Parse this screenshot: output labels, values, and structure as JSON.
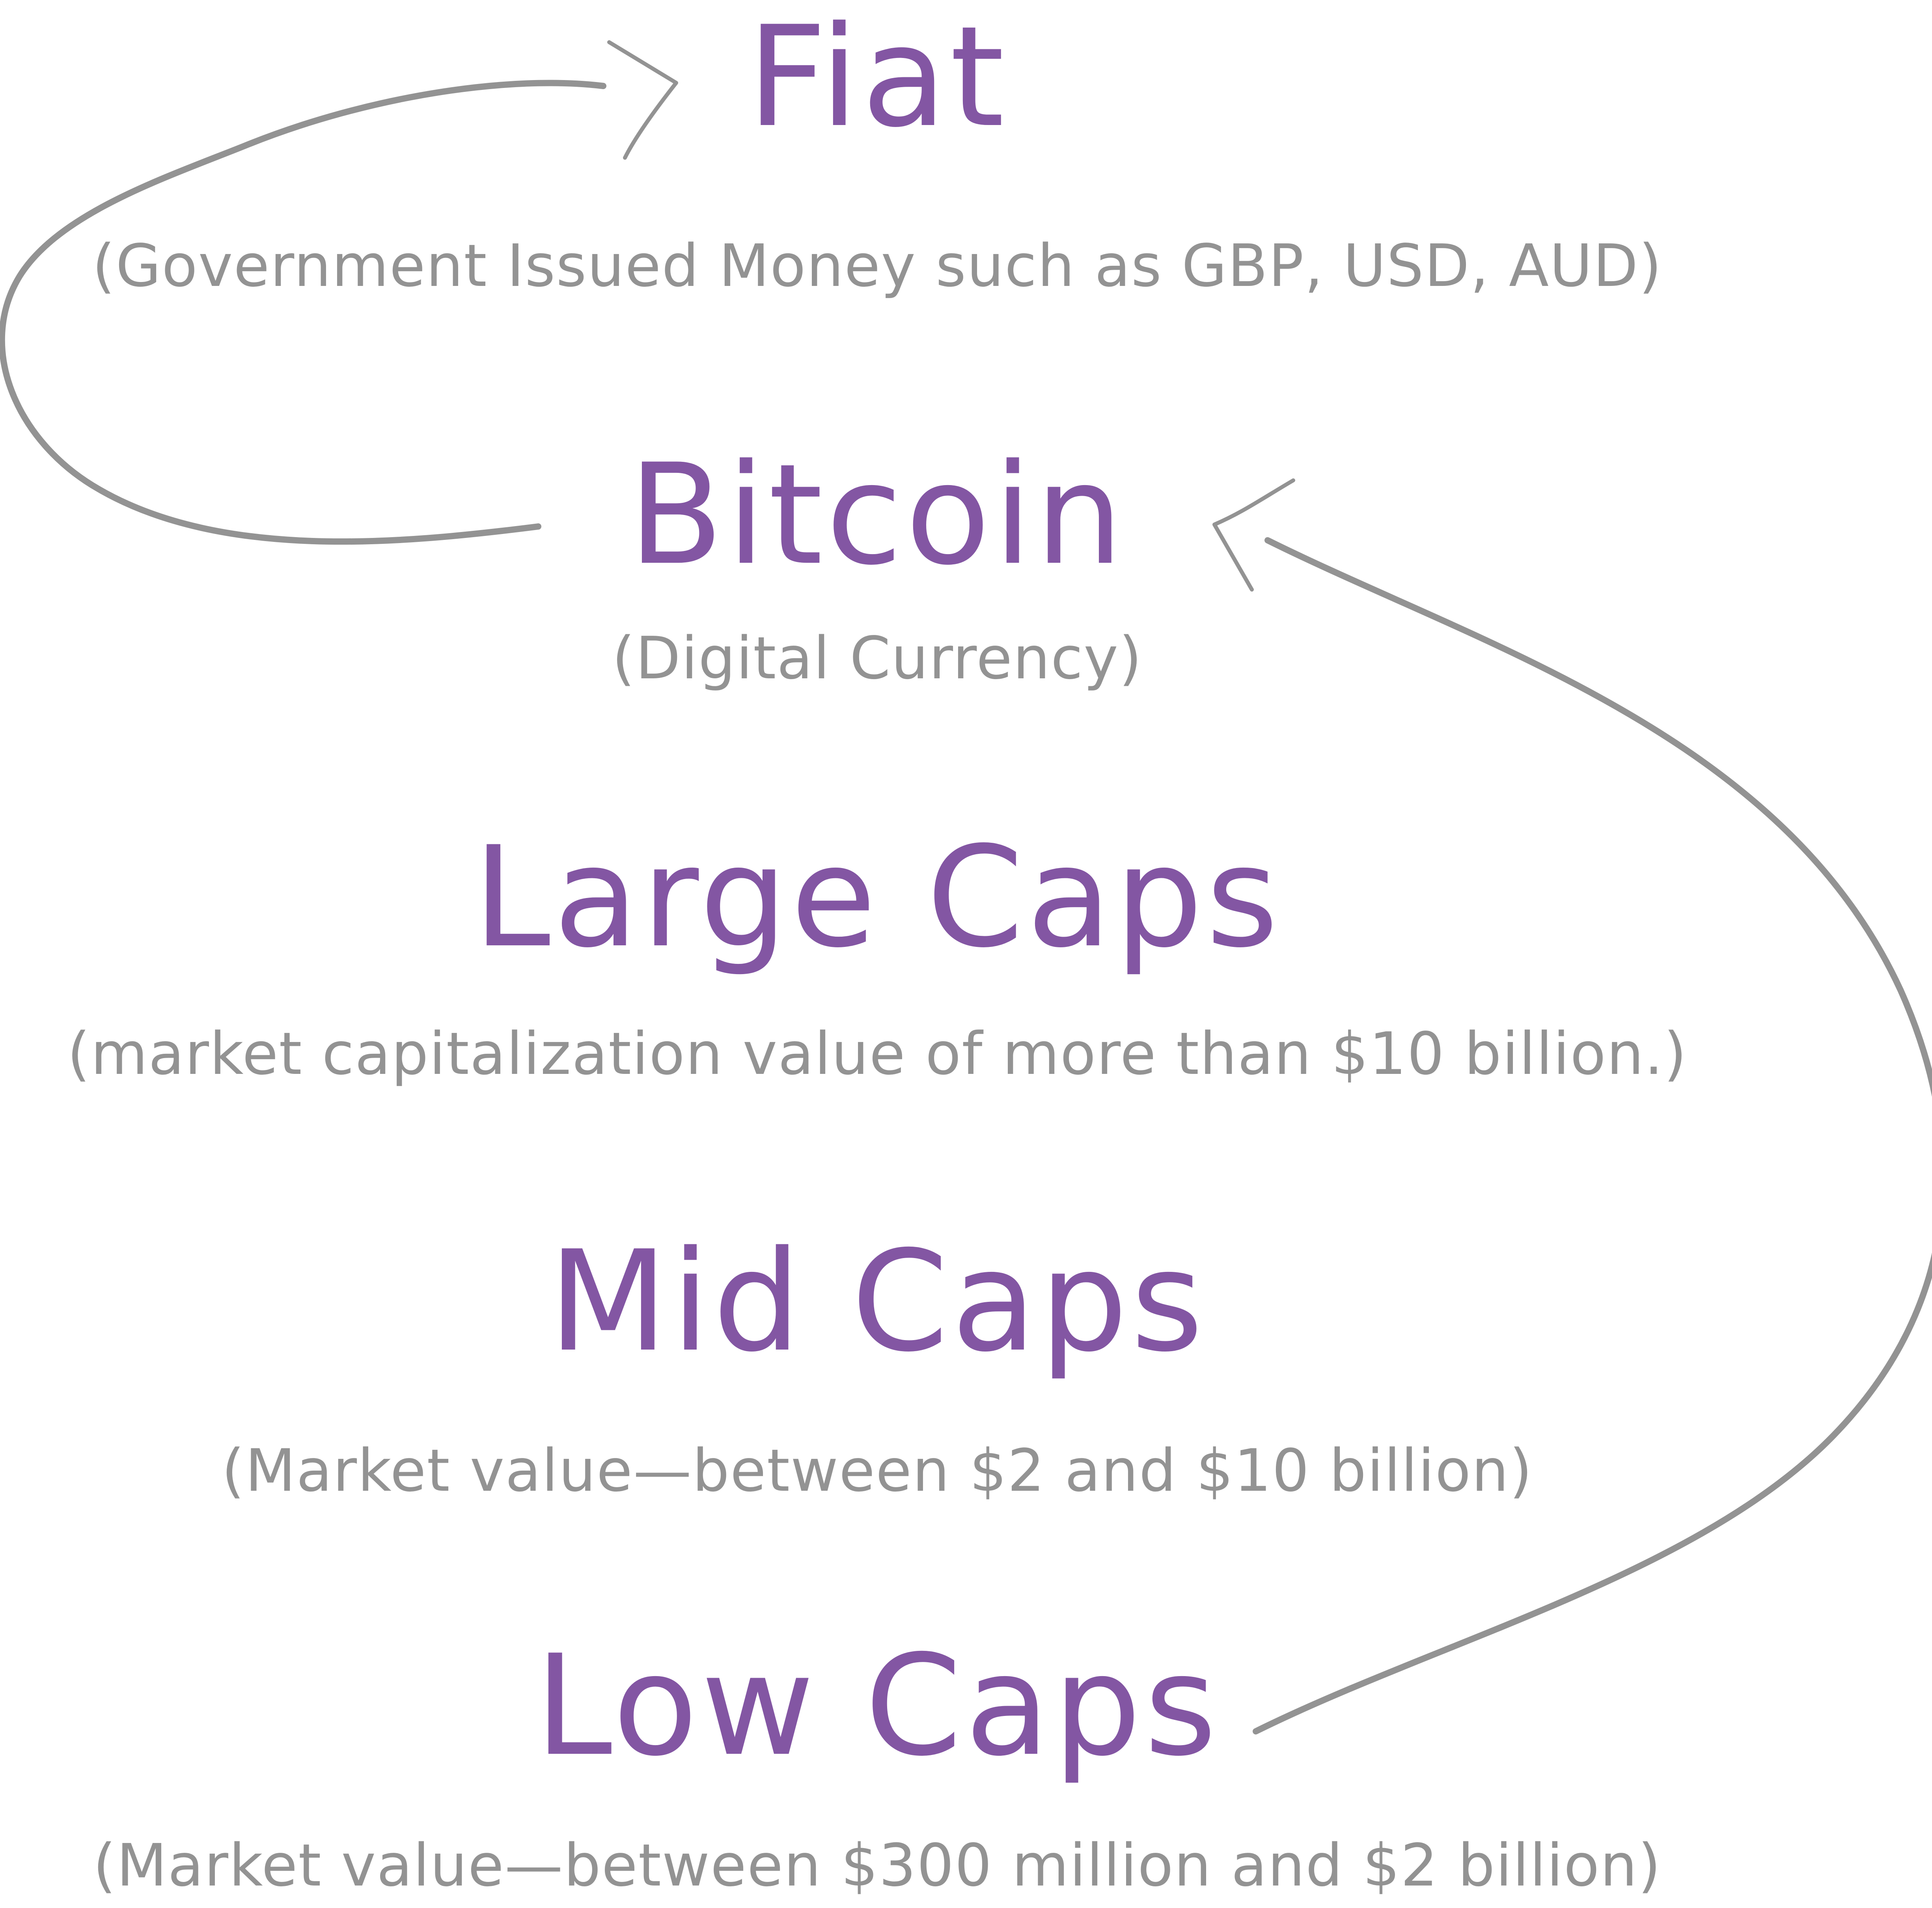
{
  "tiers": [
    {
      "title": "Fiat",
      "description": "(Government Issued Money such as GBP, USD, AUD)"
    },
    {
      "title": "Bitcoin",
      "description": "(Digital Currency)"
    },
    {
      "title": "Large Caps",
      "description": "(market capitalization value of more than $10 billion.)"
    },
    {
      "title": "Mid Caps",
      "description": "(Market value—between $2 and $10 billion)"
    },
    {
      "title": "Low Caps",
      "description": "(Market value—between $300 million and $2 billion)"
    }
  ],
  "colors": {
    "title": "#8356a3",
    "description": "#939393",
    "arrow": "#939393",
    "background": "#ffffff"
  },
  "arrows": [
    {
      "from": "Bitcoin",
      "to": "Fiat",
      "side": "left"
    },
    {
      "from": "Low Caps",
      "to": "Bitcoin",
      "side": "right"
    }
  ]
}
